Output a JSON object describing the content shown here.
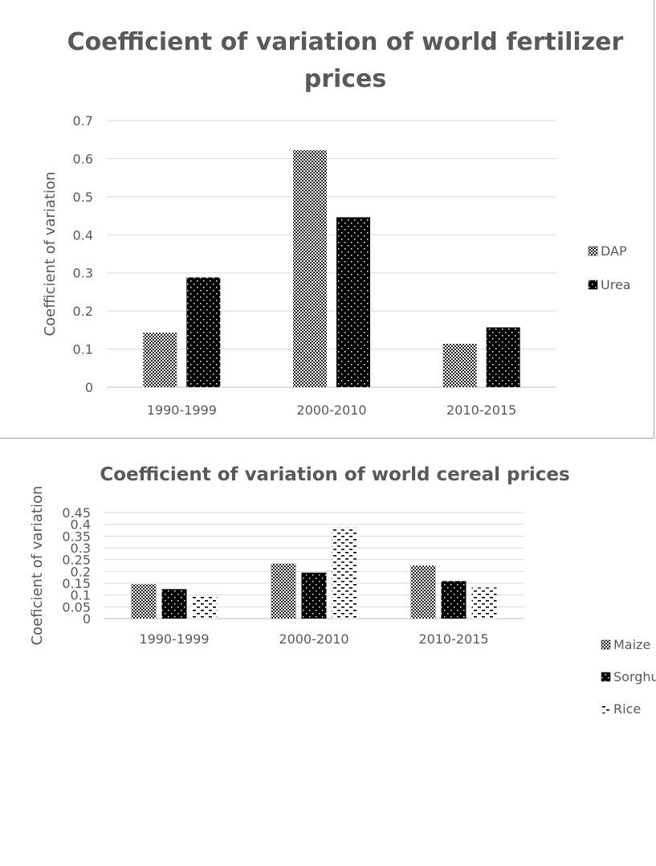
{
  "chart_data": [
    {
      "type": "bar",
      "title_lines": [
        "Coefficient of variation of world fertilizer",
        "prices"
      ],
      "xlabel": "",
      "ylabel": "Coefficient of variation",
      "categories": [
        "1990-1999",
        "2000-2010",
        "2010-2015"
      ],
      "ylim": [
        0,
        0.7
      ],
      "yticks": [
        "0",
        "0.1",
        "0.2",
        "0.3",
        "0.4",
        "0.5",
        "0.6",
        "0.7"
      ],
      "grid": true,
      "legend": "right",
      "series": [
        {
          "name": "DAP",
          "values": [
            0.143,
            0.622,
            0.114
          ],
          "pattern": "checker"
        },
        {
          "name": "Urea",
          "values": [
            0.288,
            0.446,
            0.157
          ],
          "pattern": "dots"
        }
      ]
    },
    {
      "type": "bar",
      "title_lines": [
        "Coefficient of variation of world cereal prices"
      ],
      "xlabel": "",
      "ylabel": "Coeficient of variation",
      "categories": [
        "1990-1999",
        "2000-2010",
        "2010-2015"
      ],
      "ylim": [
        0,
        0.45
      ],
      "yticks": [
        "0",
        "0.05",
        "0.1",
        "0.15",
        "0.2",
        "0.25",
        "0.3",
        "0.35",
        "0.4",
        "0.45"
      ],
      "grid": true,
      "legend": "right",
      "series": [
        {
          "name": "Maize",
          "values": [
            0.146,
            0.233,
            0.225
          ],
          "pattern": "checker"
        },
        {
          "name": "Sorghum",
          "values": [
            0.125,
            0.195,
            0.159
          ],
          "pattern": "dots"
        },
        {
          "name": "Rice",
          "values": [
            0.093,
            0.387,
            0.132
          ],
          "pattern": "dashes"
        }
      ]
    }
  ]
}
